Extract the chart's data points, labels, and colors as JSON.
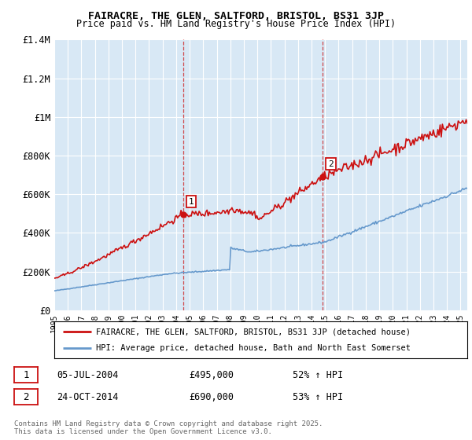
{
  "title1": "FAIRACRE, THE GLEN, SALTFORD, BRISTOL, BS31 3JP",
  "title2": "Price paid vs. HM Land Registry's House Price Index (HPI)",
  "ylim": [
    0,
    1400000
  ],
  "yticks": [
    0,
    200000,
    400000,
    600000,
    800000,
    1000000,
    1200000,
    1400000
  ],
  "ytick_labels": [
    "£0",
    "£200K",
    "£400K",
    "£600K",
    "£800K",
    "£1M",
    "£1.2M",
    "£1.4M"
  ],
  "bg_color": "#d8e8f5",
  "grid_color": "#ffffff",
  "line1_color": "#cc1111",
  "line2_color": "#6699cc",
  "vline_color": "#cc1111",
  "sale1_year": 2004.5,
  "sale1_val": 495000,
  "sale2_year": 2014.83,
  "sale2_val": 690000,
  "legend_line1": "FAIRACRE, THE GLEN, SALTFORD, BRISTOL, BS31 3JP (detached house)",
  "legend_line2": "HPI: Average price, detached house, Bath and North East Somerset",
  "annotation1_date": "05-JUL-2004",
  "annotation1_price": "£495,000",
  "annotation1_hpi": "52% ↑ HPI",
  "annotation2_date": "24-OCT-2014",
  "annotation2_price": "£690,000",
  "annotation2_hpi": "53% ↑ HPI",
  "footer": "Contains HM Land Registry data © Crown copyright and database right 2025.\nThis data is licensed under the Open Government Licence v3.0.",
  "xstart_year": 1995,
  "xend_year": 2025
}
